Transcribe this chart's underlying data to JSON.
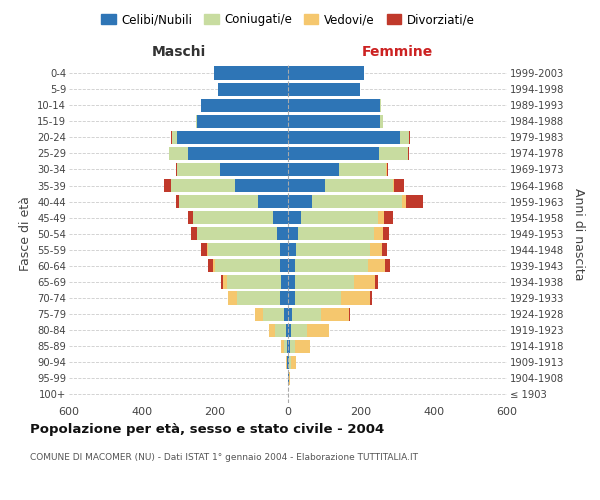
{
  "age_groups": [
    "100+",
    "95-99",
    "90-94",
    "85-89",
    "80-84",
    "75-79",
    "70-74",
    "65-69",
    "60-64",
    "55-59",
    "50-54",
    "45-49",
    "40-44",
    "35-39",
    "30-34",
    "25-29",
    "20-24",
    "15-19",
    "10-14",
    "5-9",
    "0-4"
  ],
  "birth_years": [
    "≤ 1903",
    "1904-1908",
    "1909-1913",
    "1914-1918",
    "1919-1923",
    "1924-1928",
    "1929-1933",
    "1934-1938",
    "1939-1943",
    "1944-1948",
    "1949-1953",
    "1954-1958",
    "1959-1963",
    "1964-1968",
    "1969-1973",
    "1974-1978",
    "1979-1983",
    "1984-1988",
    "1989-1993",
    "1994-1998",
    "1999-2003"
  ],
  "male_celibe": [
    1,
    1,
    2,
    4,
    6,
    10,
    22,
    20,
    22,
    22,
    30,
    42,
    82,
    145,
    185,
    275,
    305,
    248,
    238,
    192,
    202
  ],
  "male_coniugato": [
    0,
    0,
    2,
    8,
    30,
    58,
    118,
    148,
    178,
    198,
    218,
    218,
    218,
    175,
    120,
    50,
    14,
    3,
    1,
    0,
    0
  ],
  "male_vedovo": [
    0,
    0,
    1,
    6,
    15,
    22,
    24,
    10,
    5,
    3,
    2,
    1,
    0,
    0,
    0,
    0,
    0,
    0,
    0,
    0,
    0
  ],
  "male_divorziato": [
    0,
    0,
    0,
    0,
    0,
    0,
    0,
    5,
    15,
    14,
    17,
    12,
    8,
    20,
    3,
    2,
    1,
    0,
    0,
    0,
    0
  ],
  "female_nubile": [
    1,
    2,
    3,
    5,
    8,
    12,
    18,
    18,
    20,
    22,
    28,
    35,
    65,
    100,
    140,
    250,
    308,
    252,
    252,
    198,
    208
  ],
  "female_coniugata": [
    0,
    1,
    5,
    15,
    45,
    78,
    128,
    162,
    198,
    202,
    208,
    212,
    248,
    188,
    128,
    78,
    24,
    8,
    2,
    0,
    0
  ],
  "female_vedova": [
    0,
    2,
    15,
    40,
    58,
    78,
    78,
    58,
    48,
    34,
    24,
    17,
    10,
    3,
    2,
    1,
    0,
    0,
    0,
    0,
    0
  ],
  "female_divorziata": [
    0,
    0,
    0,
    0,
    0,
    2,
    5,
    8,
    14,
    14,
    17,
    24,
    48,
    28,
    5,
    3,
    1,
    0,
    0,
    0,
    0
  ],
  "colors": {
    "celibe": "#2e75b6",
    "coniugato": "#c8dca0",
    "vedovo": "#f5c76e",
    "divorziato": "#c0392b"
  },
  "legend_labels": [
    "Celibi/Nubili",
    "Coniugati/e",
    "Vedovi/e",
    "Divorziati/e"
  ],
  "title": "Popolazione per età, sesso e stato civile - 2004",
  "subtitle": "COMUNE DI MACOMER (NU) - Dati ISTAT 1° gennaio 2004 - Elaborazione TUTTITALIA.IT",
  "maschi_label": "Maschi",
  "femmine_label": "Femmine",
  "ylabel_left": "Fasce di età",
  "ylabel_right": "Anni di nascita",
  "xlim": 600,
  "bg_color": "#ffffff",
  "grid_color": "#cccccc",
  "maschi_color": "#333333",
  "femmine_color": "#cc2222"
}
